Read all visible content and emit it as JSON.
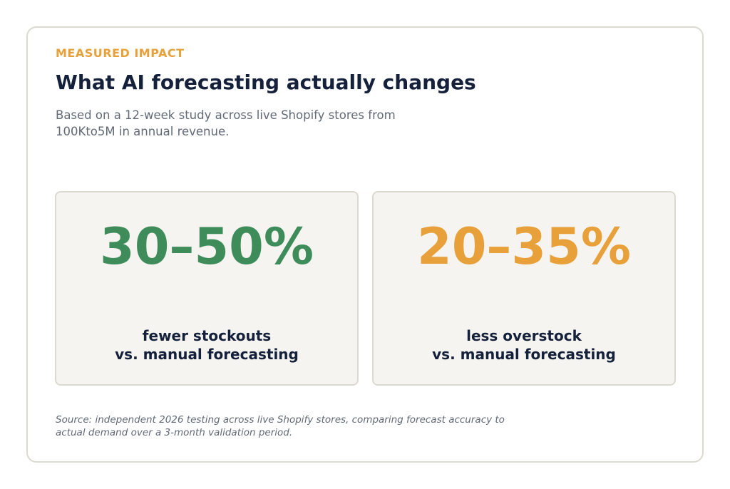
{
  "header": {
    "eyebrow": "MEASURED IMPACT",
    "title": "What AI forecasting actually changes",
    "subtitle": "Based on a 12-week study across live Shopify stores from 100Kto5M in annual revenue."
  },
  "stats": [
    {
      "value": "30–50%",
      "label_line1": "fewer stockouts",
      "label_line2": "vs. manual forecasting",
      "color": "#3f8c5b"
    },
    {
      "value": "20–35%",
      "label_line1": "less overstock",
      "label_line2": "vs. manual forecasting",
      "color": "#e8a13a"
    }
  ],
  "footer": {
    "source": "Source: independent 2026 testing across live Shopify stores, comparing forecast accuracy to actual demand over a 3-month validation period."
  }
}
